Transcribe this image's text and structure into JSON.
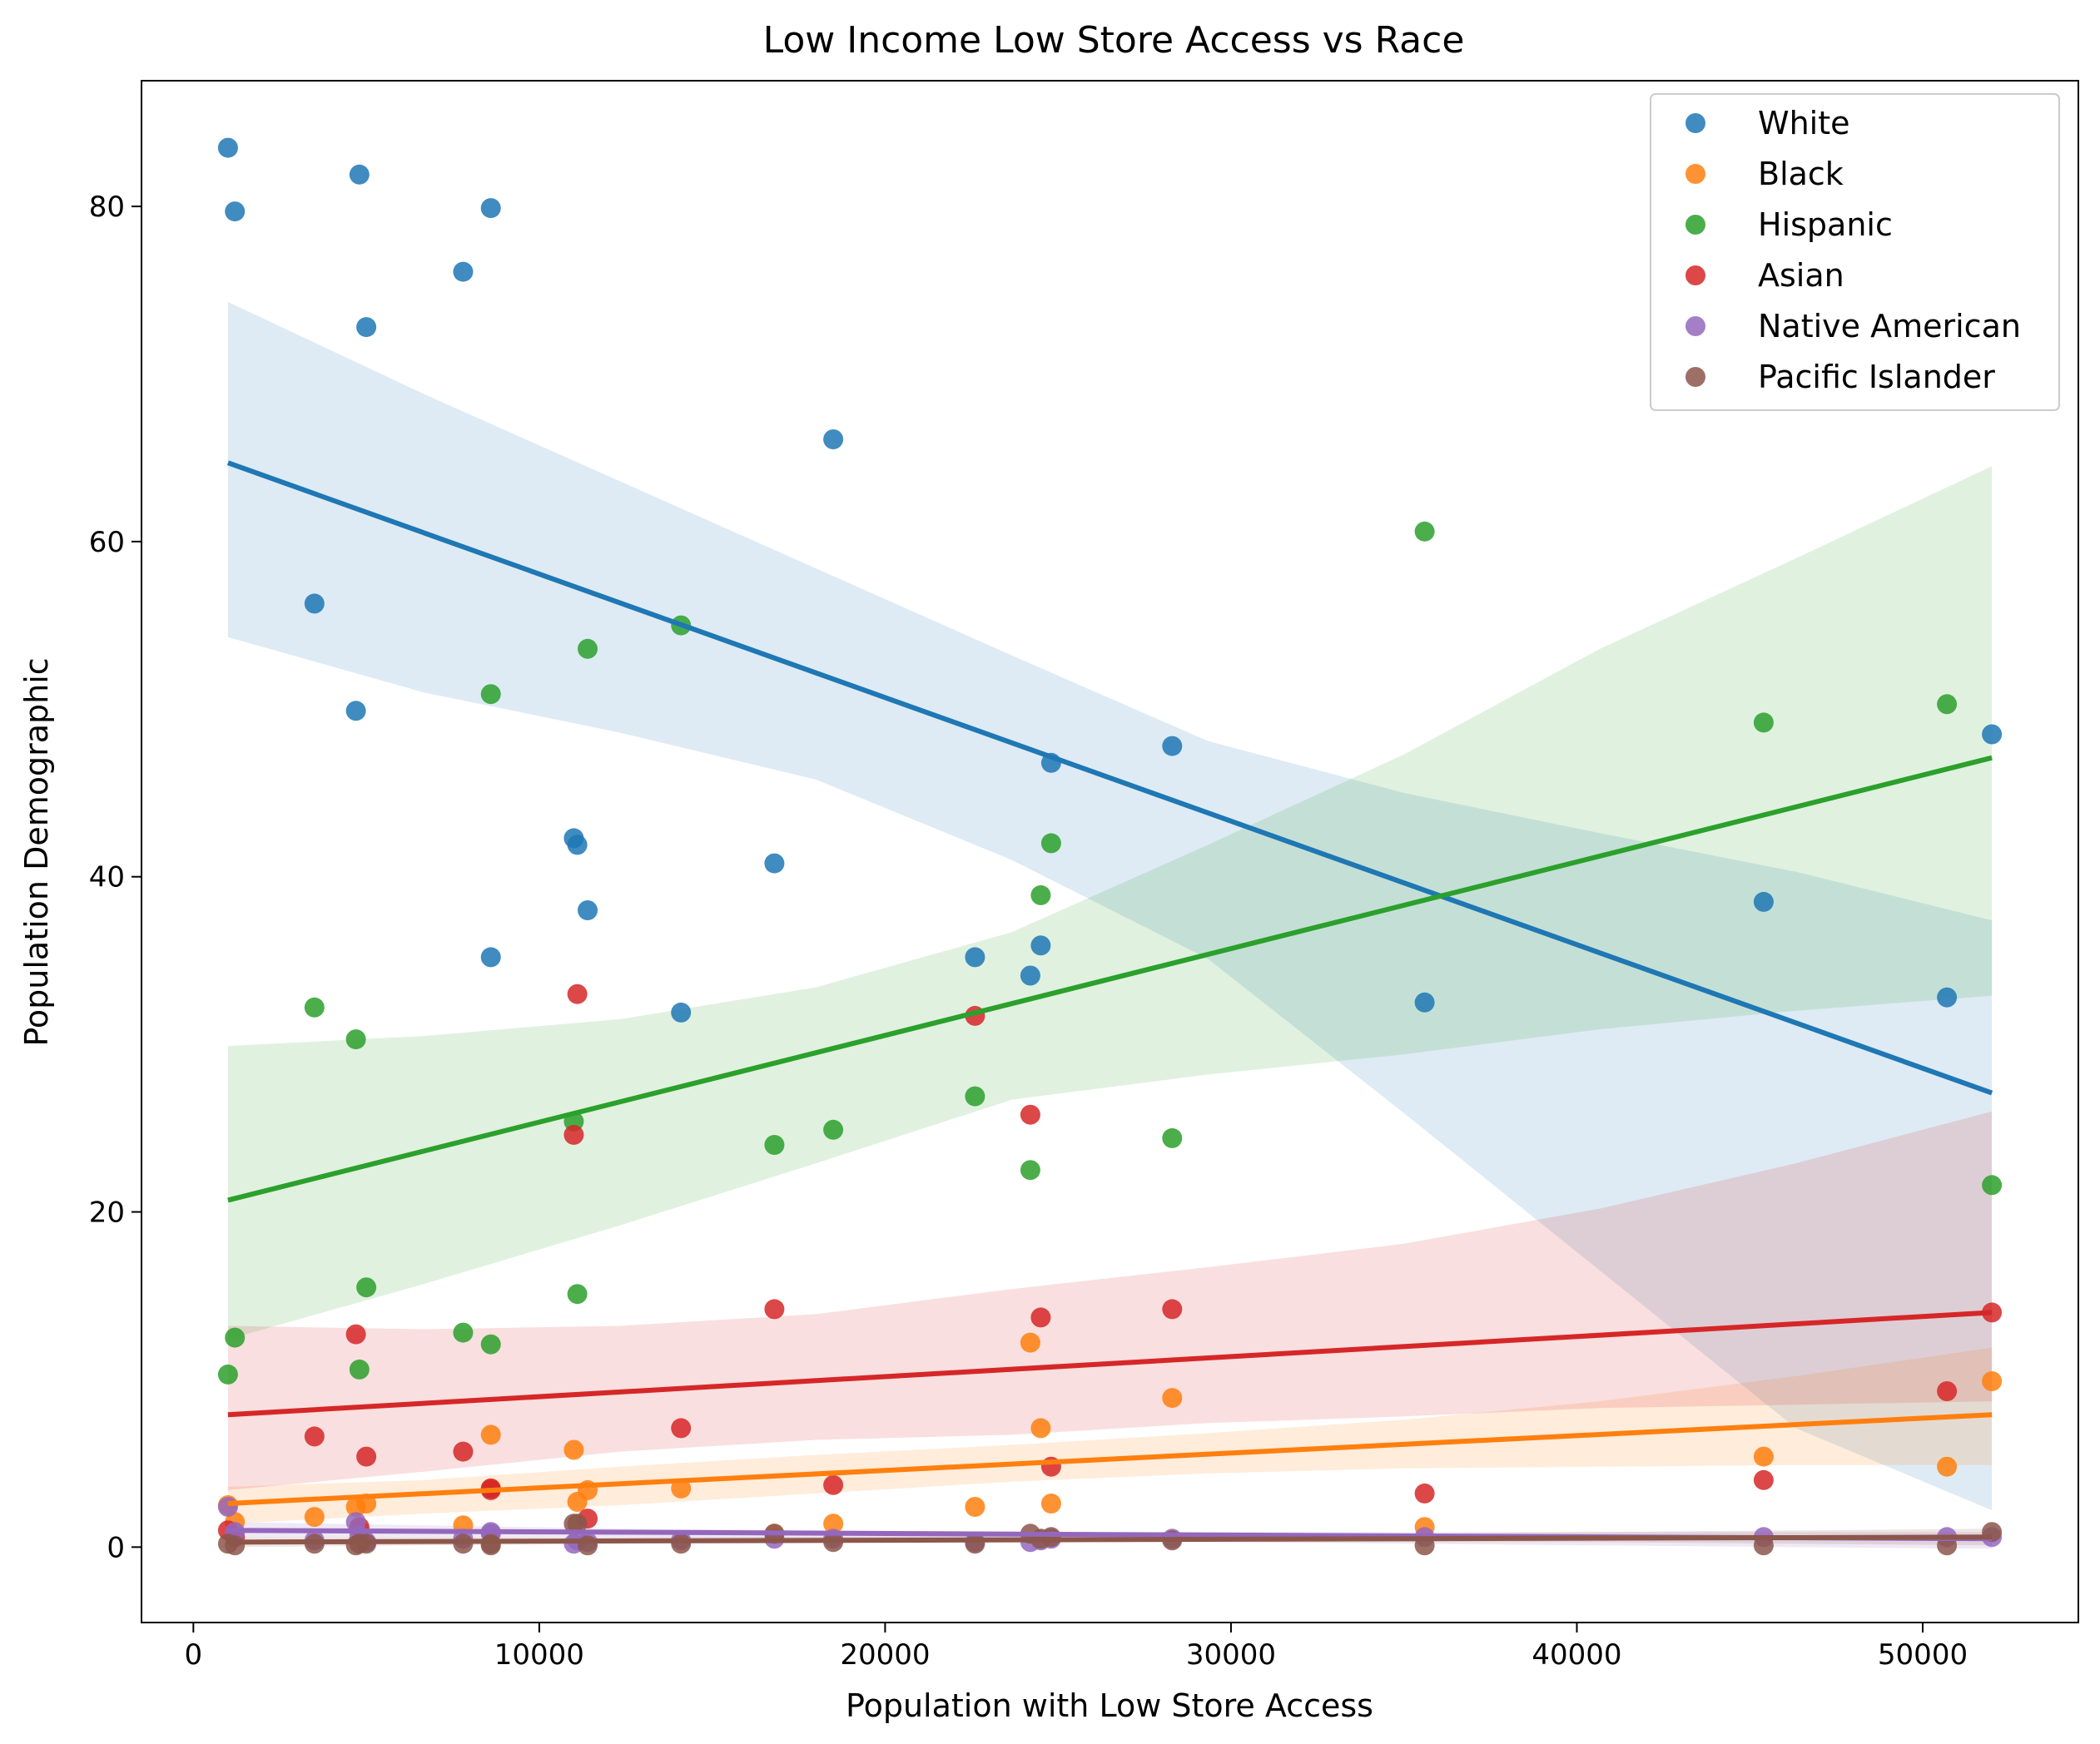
{
  "chart_data": {
    "type": "scatter",
    "title": "Low Income Low Store Access vs Race",
    "xlabel": "Population with Low Store Access",
    "ylabel": "Population Demographic",
    "xlim": [
      -1500,
      54500
    ],
    "ylim": [
      -4.5,
      87.5
    ],
    "xticks": [
      0,
      10000,
      20000,
      30000,
      40000,
      50000
    ],
    "xtick_labels": [
      "0",
      "10000",
      "20000",
      "30000",
      "40000",
      "50000"
    ],
    "yticks": [
      0,
      20,
      40,
      60,
      80
    ],
    "ytick_labels": [
      "0",
      "20",
      "40",
      "60",
      "80"
    ],
    "legend_position": "upper right",
    "grid": false,
    "x": [
      1000,
      1200,
      3500,
      4700,
      4800,
      5000,
      7800,
      8600,
      8600,
      11000,
      11100,
      11400,
      14100,
      16800,
      18500,
      22600,
      24200,
      24500,
      24800,
      28300,
      35600,
      45400,
      50700,
      52000
    ],
    "series": [
      {
        "name": "White",
        "color": "#1f77b4",
        "values": [
          83.5,
          79.7,
          56.3,
          49.9,
          81.9,
          72.8,
          76.1,
          35.2,
          79.9,
          42.3,
          41.9,
          38.0,
          31.9,
          40.8,
          66.1,
          35.2,
          34.1,
          35.9,
          46.8,
          47.8,
          32.5,
          38.5,
          32.8,
          48.5
        ],
        "fit": [
          64.7,
          27.1
        ],
        "ci_upper": [
          74.3,
          68.8,
          63.6,
          58.4,
          53.2,
          48.1,
          45.0,
          42.6,
          40.3,
          37.4
        ],
        "ci_lower": [
          54.3,
          51.0,
          48.6,
          45.8,
          41.0,
          35.1,
          25.9,
          16.5,
          7.1,
          2.2
        ]
      },
      {
        "name": "Black",
        "color": "#ff7f0e",
        "values": [
          2.5,
          1.5,
          1.8,
          2.4,
          1.0,
          2.6,
          1.3,
          3.5,
          6.7,
          5.8,
          2.7,
          3.4,
          3.5,
          0.8,
          1.4,
          2.4,
          12.2,
          7.1,
          2.6,
          8.9,
          1.2,
          5.4,
          4.8,
          9.9
        ],
        "fit": [
          2.6,
          7.9
        ],
        "ci_upper": [
          3.6,
          4.0,
          4.8,
          5.5,
          6.1,
          6.8,
          7.6,
          8.7,
          10.2,
          11.9
        ],
        "ci_lower": [
          1.4,
          2.0,
          2.5,
          3.2,
          3.9,
          4.4,
          4.7,
          4.8,
          4.9,
          4.9
        ]
      },
      {
        "name": "Hispanic",
        "color": "#2ca02c",
        "values": [
          10.3,
          12.5,
          32.2,
          30.3,
          10.6,
          15.5,
          12.8,
          50.9,
          12.1,
          25.4,
          15.1,
          53.6,
          55.0,
          24.0,
          24.9,
          26.9,
          22.5,
          38.9,
          42.0,
          24.4,
          60.6,
          49.2,
          50.3,
          21.6
        ],
        "fit": [
          20.7,
          47.1
        ],
        "ci_upper": [
          29.9,
          30.5,
          31.5,
          33.4,
          36.7,
          41.9,
          47.3,
          53.6,
          59.0,
          64.5
        ],
        "ci_lower": [
          12.4,
          15.7,
          19.2,
          22.9,
          26.7,
          28.2,
          29.4,
          30.9,
          32.0,
          32.9
        ]
      },
      {
        "name": "Asian",
        "color": "#d62728",
        "values": [
          1.0,
          0.6,
          6.6,
          12.7,
          1.2,
          5.4,
          5.7,
          3.5,
          3.4,
          24.6,
          33.0,
          1.7,
          7.1,
          14.2,
          3.7,
          31.7,
          25.8,
          13.7,
          4.8,
          14.2,
          3.2,
          4.0,
          9.3,
          14.0
        ],
        "fit": [
          7.9,
          14.0
        ],
        "ci_upper": [
          13.2,
          13.0,
          13.2,
          13.9,
          15.4,
          16.7,
          18.1,
          20.2,
          22.9,
          26.0
        ],
        "ci_lower": [
          3.4,
          4.5,
          5.7,
          6.4,
          6.7,
          7.4,
          7.8,
          8.3,
          8.5,
          8.7
        ]
      },
      {
        "name": "Native American",
        "color": "#9467bd",
        "values": [
          2.4,
          0.9,
          0.4,
          1.5,
          0.7,
          0.3,
          0.5,
          0.8,
          0.9,
          0.2,
          0.4,
          0.3,
          0.4,
          0.5,
          0.5,
          0.3,
          0.3,
          0.4,
          0.5,
          0.5,
          0.6,
          0.6,
          0.6,
          0.6
        ],
        "fit": [
          1.0,
          0.5
        ],
        "ci_upper": [
          1.5,
          1.3,
          1.1,
          1.0,
          0.9,
          0.9,
          0.9,
          0.9,
          0.9,
          0.9
        ],
        "ci_lower": [
          0.6,
          0.6,
          0.6,
          0.5,
          0.4,
          0.3,
          0.2,
          0.1,
          0.0,
          -0.1
        ]
      },
      {
        "name": "Pacific Islander",
        "color": "#8c564b",
        "values": [
          0.2,
          0.1,
          0.2,
          0.1,
          0.2,
          0.2,
          0.2,
          0.1,
          0.2,
          1.4,
          1.4,
          0.1,
          0.2,
          0.8,
          0.3,
          0.2,
          0.8,
          0.5,
          0.6,
          0.4,
          0.1,
          0.1,
          0.1,
          0.9
        ],
        "fit": [
          0.3,
          0.6
        ],
        "ci_upper": [
          0.6,
          0.6,
          0.6,
          0.6,
          0.7,
          0.7,
          0.8,
          0.9,
          1.0,
          1.1
        ],
        "ci_lower": [
          0.0,
          0.1,
          0.2,
          0.3,
          0.3,
          0.3,
          0.3,
          0.3,
          0.2,
          0.1
        ]
      }
    ]
  }
}
